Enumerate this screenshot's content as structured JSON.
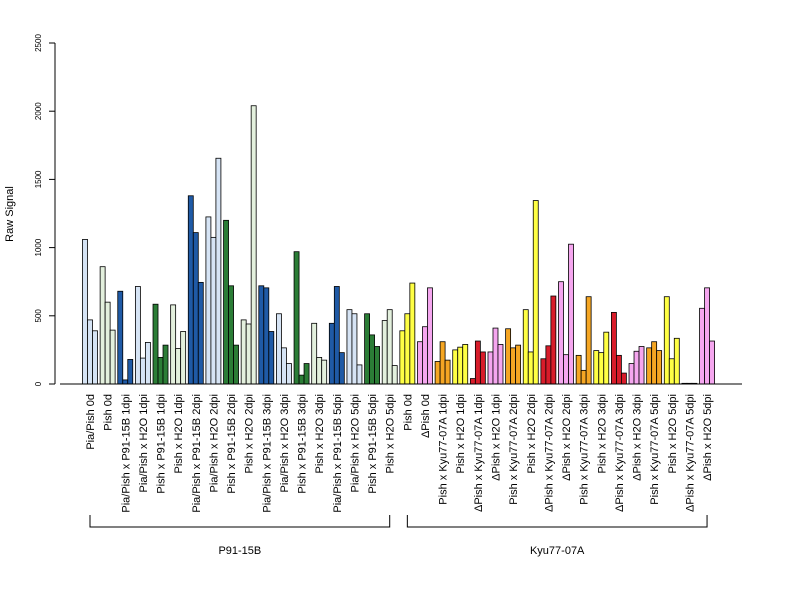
{
  "chart_data": {
    "type": "bar",
    "ylabel": "Raw Signal",
    "ylim": [
      0,
      2500
    ],
    "yticks": [
      0,
      500,
      1000,
      1500,
      2000,
      2500
    ],
    "categories": [
      "Pia/Pish 0d",
      "Pish 0d",
      "Pia/Pish x P91-15B 1dpi",
      "Pia/Pish x H2O 1dpi",
      "Pish x P91-15B 1dpi",
      "Pish x H2O 1dpi",
      "Pia/Pish x P91-15B 2dpi",
      "Pia/Pish x H2O 2dpi",
      "Pish x P91-15B 2dpi",
      "Pish x H2O 2dpi",
      "Pia/Pish x P91-15B 3dpi",
      "Pia/Pish x H2O 3dpi",
      "Pish x P91-15B 3dpi",
      "Pish x H2O 3dpi",
      "Pia/Pish x P91-15B 5dpi",
      "Pia/Pish x H2O 5dpi",
      "Pish x P91-15B 5dpi",
      "Pish x H2O 5dpi",
      "Pish 0d",
      "ΔPish 0d",
      "Pish x Kyu77-07A 1dpi",
      "Pish x H2O 1dpi",
      "ΔPish x Kyu77-07A 1dpi",
      "ΔPish x H2O 1dpi",
      "Pish x Kyu77-07A 2dpi",
      "Pish x H2O 2dpi",
      "ΔPish x Kyu77-07A 2dpi",
      "ΔPish x H2O 2dpi",
      "Pish x Kyu77-07A 3dpi",
      "Pish x H2O 3dpi",
      "ΔPish x Kyu77-07A 3dpi",
      "ΔPish x H2O 3dpi",
      "Pish x Kyu77-07A 5dpi",
      "Pish x H2O 5dpi",
      "ΔPish x Kyu77-07A 5dpi",
      "ΔPish x H2O 5dpi"
    ],
    "colors": [
      "#d6e4f5",
      "#e3f0dd",
      "#1f5aa6",
      "#d6e4f5",
      "#2b7d36",
      "#e3f0dd",
      "#1f5aa6",
      "#d6e4f5",
      "#2b7d36",
      "#e3f0dd",
      "#1f5aa6",
      "#d6e4f5",
      "#2b7d36",
      "#e3f0dd",
      "#1f5aa6",
      "#d6e4f5",
      "#2b7d36",
      "#e3f0dd",
      "#ffff44",
      "#f5a6ef",
      "#f5a623",
      "#ffff44",
      "#d81c2a",
      "#f5a6ef",
      "#f5a623",
      "#ffff44",
      "#d81c2a",
      "#f5a6ef",
      "#f5a623",
      "#ffff44",
      "#d81c2a",
      "#f5a6ef",
      "#f5a623",
      "#ffff44",
      "#d81c2a",
      "#f5a6ef"
    ],
    "values": [
      [
        1060,
        470,
        390
      ],
      [
        860,
        600,
        395
      ],
      [
        680,
        30,
        180
      ],
      [
        715,
        190,
        305
      ],
      [
        585,
        195,
        285
      ],
      [
        580,
        260,
        385
      ],
      [
        1380,
        1110,
        745
      ],
      [
        1225,
        1075,
        1655
      ],
      [
        1200,
        720,
        285
      ],
      [
        470,
        440,
        2040
      ],
      [
        720,
        705,
        385
      ],
      [
        515,
        265,
        150
      ],
      [
        970,
        65,
        150
      ],
      [
        445,
        195,
        175
      ],
      [
        445,
        715,
        230
      ],
      [
        545,
        515,
        140
      ],
      [
        515,
        360,
        275
      ],
      [
        465,
        545,
        135
      ],
      [
        390,
        515,
        740
      ],
      [
        310,
        420,
        705
      ],
      [
        165,
        310,
        175
      ],
      [
        250,
        270,
        290
      ],
      [
        40,
        315,
        235
      ],
      [
        235,
        410,
        290
      ],
      [
        405,
        265,
        285
      ],
      [
        545,
        235,
        1345
      ],
      [
        185,
        280,
        645
      ],
      [
        750,
        215,
        1025
      ],
      [
        210,
        100,
        640
      ],
      [
        245,
        230,
        380
      ],
      [
        525,
        210,
        80
      ],
      [
        150,
        240,
        275
      ],
      [
        265,
        310,
        245
      ],
      [
        640,
        185,
        335
      ],
      [
        5,
        5,
        5
      ],
      [
        555,
        705,
        315
      ]
    ],
    "groups": [
      {
        "label": "P91-15B",
        "start": 0,
        "end": 17
      },
      {
        "label": "Kyu77-07A",
        "start": 18,
        "end": 35
      }
    ]
  }
}
